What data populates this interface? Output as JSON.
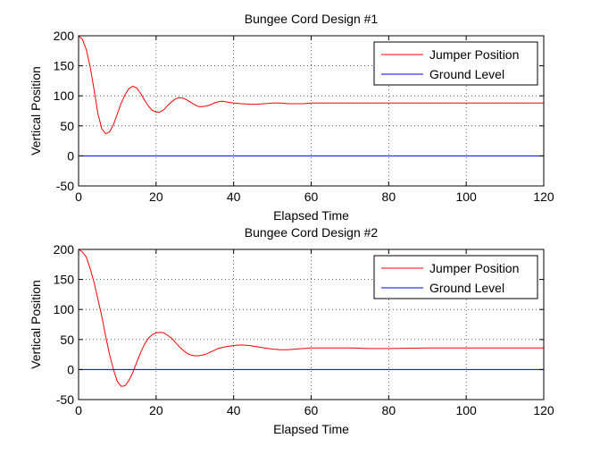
{
  "chart_data": [
    {
      "type": "line",
      "title": "Bungee Cord Design #1",
      "xlabel": "Elapsed Time",
      "ylabel": "Vertical Position",
      "xlim": [
        0,
        120
      ],
      "ylim": [
        -50,
        200
      ],
      "xticks": [
        0,
        20,
        40,
        60,
        80,
        100,
        120
      ],
      "yticks": [
        -50,
        0,
        50,
        100,
        150,
        200
      ],
      "grid": true,
      "legend_position": "top-right",
      "series": [
        {
          "name": "Jumper Position",
          "color": "#ff0000",
          "x": [
            0,
            1,
            2,
            3,
            4,
            5,
            6,
            7,
            8,
            9,
            10,
            11,
            12,
            13,
            14,
            15,
            16,
            17,
            18,
            19,
            20,
            21,
            22,
            23,
            24,
            25,
            26,
            27,
            28,
            29,
            30,
            31,
            32,
            33,
            34,
            35,
            36,
            37,
            38,
            39,
            40,
            42,
            44,
            46,
            48,
            50,
            52,
            54,
            56,
            58,
            60,
            65,
            70,
            80,
            90,
            100,
            110,
            120
          ],
          "y": [
            200,
            194,
            177,
            148,
            110,
            70,
            45,
            37,
            40,
            52,
            70,
            88,
            102,
            112,
            116,
            113,
            104,
            93,
            83,
            76,
            73,
            73,
            77,
            84,
            90,
            95,
            97,
            96,
            93,
            89,
            85,
            82,
            82,
            83,
            85,
            88,
            90,
            91,
            90,
            89,
            88,
            87,
            86,
            86,
            87,
            88,
            88,
            87,
            87,
            87,
            88,
            88,
            88,
            88,
            88,
            88,
            88,
            88
          ]
        },
        {
          "name": "Ground Level",
          "color": "#0000ff",
          "x": [
            0,
            120
          ],
          "y": [
            0,
            0
          ]
        }
      ]
    },
    {
      "type": "line",
      "title": "Bungee Cord Design #2",
      "xlabel": "Elapsed Time",
      "ylabel": "Vertical Position",
      "xlim": [
        0,
        120
      ],
      "ylim": [
        -50,
        200
      ],
      "xticks": [
        0,
        20,
        40,
        60,
        80,
        100,
        120
      ],
      "yticks": [
        -50,
        0,
        50,
        100,
        150,
        200
      ],
      "grid": true,
      "legend_position": "top-right",
      "series": [
        {
          "name": "Jumper Position",
          "color": "#ff0000",
          "x": [
            0,
            1,
            2,
            3,
            4,
            5,
            6,
            7,
            8,
            9,
            10,
            11,
            12,
            13,
            14,
            15,
            16,
            17,
            18,
            19,
            20,
            21,
            22,
            23,
            24,
            25,
            26,
            27,
            28,
            29,
            30,
            31,
            32,
            33,
            34,
            35,
            36,
            38,
            40,
            42,
            44,
            46,
            48,
            50,
            52,
            54,
            56,
            58,
            60,
            65,
            70,
            75,
            80,
            90,
            100,
            110,
            120
          ],
          "y": [
            200,
            196,
            187,
            168,
            145,
            117,
            88,
            55,
            25,
            0,
            -20,
            -28,
            -27,
            -18,
            -5,
            12,
            28,
            42,
            52,
            58,
            61,
            62,
            61,
            57,
            52,
            45,
            38,
            32,
            27,
            24,
            23,
            23,
            24,
            26,
            29,
            32,
            35,
            38,
            40,
            41,
            40,
            38,
            36,
            34,
            33,
            33,
            34,
            35,
            36,
            36,
            36,
            35,
            35,
            36,
            36,
            36,
            36
          ]
        },
        {
          "name": "Ground Level",
          "color": "#0000ff",
          "x": [
            0,
            120
          ],
          "y": [
            0,
            0
          ]
        }
      ]
    }
  ]
}
